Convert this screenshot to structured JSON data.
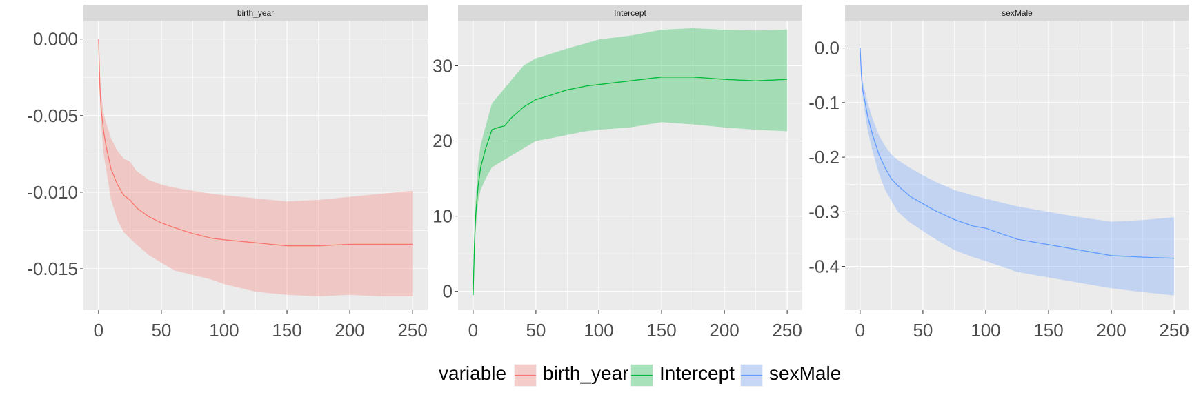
{
  "chart_data": {
    "type": "area",
    "legend": {
      "title": "variable",
      "position": "bottom",
      "entries": [
        "birth_year",
        "Intercept",
        "sexMale"
      ]
    },
    "colors": {
      "birth_year": "#F8766D",
      "Intercept": "#00BA38",
      "sexMale": "#619CFF",
      "panel_bg": "#EBEBEB",
      "strip_bg": "#D9D9D9",
      "grid": "#FFFFFF"
    },
    "grid": true,
    "facets": [
      {
        "strip_label": "birth_year",
        "series_name": "birth_year",
        "xlim": [
          -12,
          262
        ],
        "ylim": [
          -0.0177,
          0.0012
        ],
        "x_ticks": [
          0,
          50,
          100,
          150,
          200,
          250
        ],
        "x_tick_labels": [
          "0",
          "50",
          "100",
          "150",
          "200",
          "250"
        ],
        "y_ticks": [
          0.0,
          -0.005,
          -0.01,
          -0.015
        ],
        "y_tick_labels": [
          "0.000",
          "-0.005",
          "-0.010",
          "-0.015"
        ],
        "x": [
          0,
          1,
          2,
          4,
          6,
          10,
          15,
          20,
          25,
          30,
          40,
          50,
          60,
          75,
          90,
          100,
          125,
          150,
          175,
          200,
          225,
          250
        ],
        "mean": [
          0.0,
          -0.003,
          -0.0045,
          -0.006,
          -0.007,
          -0.0085,
          -0.0095,
          -0.0102,
          -0.0105,
          -0.011,
          -0.0116,
          -0.012,
          -0.0123,
          -0.0127,
          -0.013,
          -0.0131,
          -0.0133,
          -0.0135,
          -0.0135,
          -0.0134,
          -0.0134,
          -0.0134
        ],
        "lower": [
          0.0,
          -0.003,
          -0.0055,
          -0.0075,
          -0.0085,
          -0.0105,
          -0.0118,
          -0.0126,
          -0.013,
          -0.0134,
          -0.0141,
          -0.0146,
          -0.0151,
          -0.0154,
          -0.0157,
          -0.016,
          -0.0165,
          -0.0167,
          -0.0168,
          -0.0167,
          -0.0168,
          -0.0168
        ],
        "upper": [
          0.0,
          -0.002,
          -0.0035,
          -0.0048,
          -0.0055,
          -0.0065,
          -0.0073,
          -0.0078,
          -0.008,
          -0.0086,
          -0.0092,
          -0.0095,
          -0.0097,
          -0.0099,
          -0.0101,
          -0.0102,
          -0.0104,
          -0.0106,
          -0.0105,
          -0.0103,
          -0.0101,
          -0.0099
        ]
      },
      {
        "strip_label": "Intercept",
        "series_name": "Intercept",
        "xlim": [
          -12,
          262
        ],
        "ylim": [
          -2.5,
          36.0
        ],
        "x_ticks": [
          0,
          50,
          100,
          150,
          200,
          250
        ],
        "x_tick_labels": [
          "0",
          "50",
          "100",
          "150",
          "200",
          "250"
        ],
        "y_ticks": [
          0,
          10,
          20,
          30
        ],
        "y_tick_labels": [
          "0",
          "10",
          "20",
          "30"
        ],
        "x": [
          0,
          1,
          2,
          4,
          6,
          10,
          15,
          20,
          25,
          30,
          40,
          50,
          60,
          75,
          90,
          100,
          125,
          150,
          175,
          200,
          225,
          250
        ],
        "mean": [
          -0.5,
          6,
          10,
          14,
          16.5,
          19,
          21.5,
          21.8,
          22,
          23,
          24.5,
          25.5,
          26,
          26.8,
          27.3,
          27.5,
          28,
          28.5,
          28.5,
          28.2,
          28,
          28.2
        ],
        "lower": [
          -0.5,
          4,
          8,
          12,
          13.5,
          15,
          16.5,
          17,
          17.5,
          18,
          19,
          20,
          20.3,
          20.8,
          21.3,
          21.5,
          21.8,
          22.5,
          22.2,
          21.8,
          21.5,
          21.3
        ],
        "upper": [
          -0.5,
          8,
          12,
          17,
          19.5,
          22,
          25,
          26,
          27,
          28,
          30,
          31,
          31.5,
          32.3,
          33,
          33.5,
          34,
          34.8,
          35,
          34.8,
          34.7,
          34.8
        ]
      },
      {
        "strip_label": "sexMale",
        "series_name": "sexMale",
        "xlim": [
          -12,
          262
        ],
        "ylim": [
          -0.48,
          0.05
        ],
        "x_ticks": [
          0,
          50,
          100,
          150,
          200,
          250
        ],
        "x_tick_labels": [
          "0",
          "50",
          "100",
          "150",
          "200",
          "250"
        ],
        "y_ticks": [
          0.0,
          -0.1,
          -0.2,
          -0.3,
          -0.4
        ],
        "y_tick_labels": [
          "0.0",
          "-0.1",
          "-0.2",
          "-0.3",
          "-0.4"
        ],
        "x": [
          0,
          1,
          2,
          4,
          6,
          10,
          15,
          20,
          25,
          30,
          40,
          50,
          60,
          75,
          90,
          100,
          125,
          150,
          175,
          200,
          225,
          250
        ],
        "mean": [
          0.0,
          -0.05,
          -0.075,
          -0.1,
          -0.125,
          -0.16,
          -0.195,
          -0.22,
          -0.24,
          -0.252,
          -0.272,
          -0.285,
          -0.298,
          -0.314,
          -0.326,
          -0.33,
          -0.35,
          -0.36,
          -0.37,
          -0.38,
          -0.383,
          -0.385
        ],
        "lower": [
          0.0,
          -0.06,
          -0.09,
          -0.12,
          -0.15,
          -0.19,
          -0.23,
          -0.26,
          -0.28,
          -0.3,
          -0.32,
          -0.335,
          -0.35,
          -0.37,
          -0.383,
          -0.39,
          -0.41,
          -0.42,
          -0.43,
          -0.44,
          -0.447,
          -0.453
        ],
        "upper": [
          0.0,
          -0.04,
          -0.06,
          -0.08,
          -0.1,
          -0.13,
          -0.16,
          -0.18,
          -0.195,
          -0.205,
          -0.22,
          -0.233,
          -0.245,
          -0.26,
          -0.27,
          -0.276,
          -0.29,
          -0.3,
          -0.31,
          -0.318,
          -0.315,
          -0.31
        ]
      }
    ]
  }
}
